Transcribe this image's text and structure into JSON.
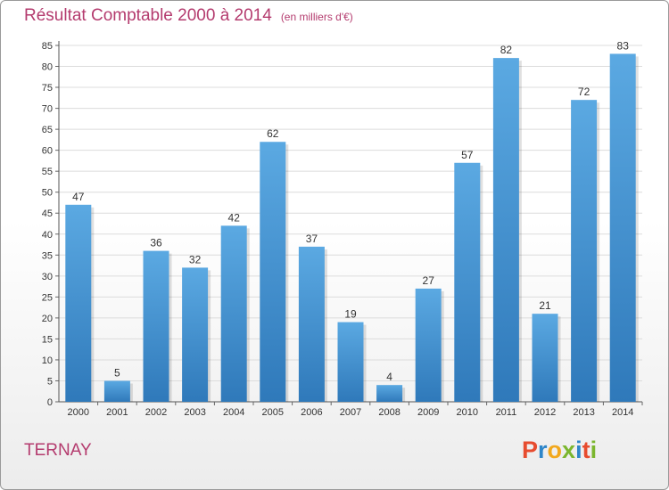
{
  "header": {
    "title": "Résultat Comptable 2000 à 2014",
    "subtitle": "(en milliers d'€)"
  },
  "footer": {
    "commune": "TERNAY",
    "logo_letters": [
      "P",
      "r",
      "o",
      "x",
      "i",
      "t",
      "i"
    ]
  },
  "colors": {
    "title": "#b43b6e",
    "bar_light": "#5ba9e2",
    "bar_dark": "#2f79ba",
    "grid": "#dcdcdc",
    "logo": [
      "#e74c2f",
      "#2e86c9",
      "#f2a81d",
      "#7bb62e",
      "#2e86c9",
      "#e74c2f",
      "#7bb62e"
    ]
  },
  "chart_data": {
    "type": "bar",
    "title": "Résultat Comptable 2000 à 2014",
    "subtitle": "(en milliers d'€)",
    "xlabel": "",
    "ylabel": "",
    "categories": [
      "2000",
      "2001",
      "2002",
      "2003",
      "2004",
      "2005",
      "2006",
      "2007",
      "2008",
      "2009",
      "2010",
      "2011",
      "2012",
      "2013",
      "2014"
    ],
    "values": [
      47,
      5,
      36,
      32,
      42,
      62,
      37,
      19,
      4,
      27,
      57,
      82,
      21,
      72,
      83
    ],
    "ylim": [
      0,
      85
    ],
    "yticks": [
      0,
      5,
      10,
      15,
      20,
      25,
      30,
      35,
      40,
      45,
      50,
      55,
      60,
      65,
      70,
      75,
      80,
      85
    ],
    "grid": true
  }
}
